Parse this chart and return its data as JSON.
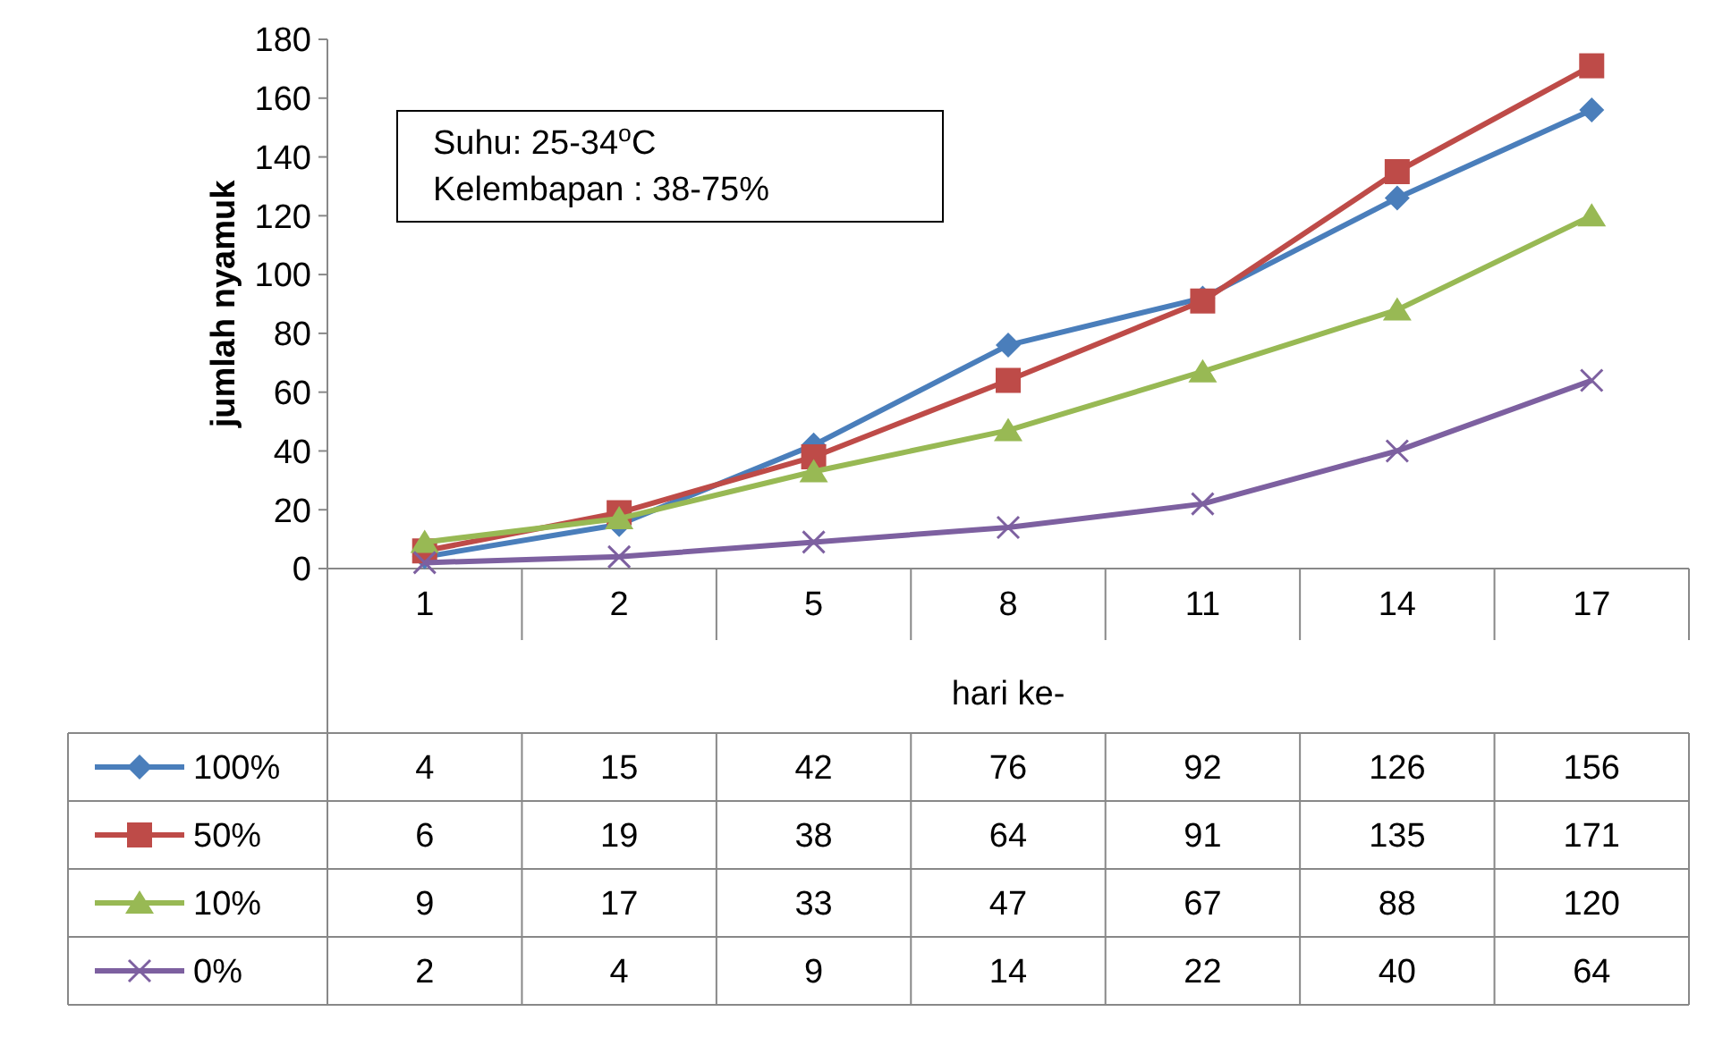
{
  "chart_data": {
    "type": "line",
    "xlabel": "hari ke-",
    "ylabel": "jumlah nyamuk",
    "categories": [
      "1",
      "2",
      "5",
      "8",
      "11",
      "14",
      "17"
    ],
    "ylim": [
      0,
      180
    ],
    "yticks": [
      0,
      20,
      40,
      60,
      80,
      100,
      120,
      140,
      160,
      180
    ],
    "grid": false,
    "legend": "bottom",
    "data_labels": true,
    "annotations": [
      "Suhu: 25-34$^{o}$C",
      "Kelembapan : 38-75%"
    ],
    "series": [
      {
        "name": "100%",
        "color": "#4a7ebb",
        "marker": "diamond",
        "values": [
          4,
          15,
          42,
          76,
          92,
          126,
          156
        ]
      },
      {
        "name": "50%",
        "color": "#be4b48",
        "marker": "square",
        "values": [
          6,
          19,
          38,
          64,
          91,
          135,
          171
        ]
      },
      {
        "name": "10%",
        "color": "#98b954",
        "marker": "triangle",
        "values": [
          9,
          17,
          33,
          47,
          67,
          88,
          120
        ]
      },
      {
        "name": "0%",
        "color": "#7d60a0",
        "marker": "cross",
        "values": [
          2,
          4,
          9,
          14,
          22,
          40,
          64
        ]
      }
    ]
  }
}
